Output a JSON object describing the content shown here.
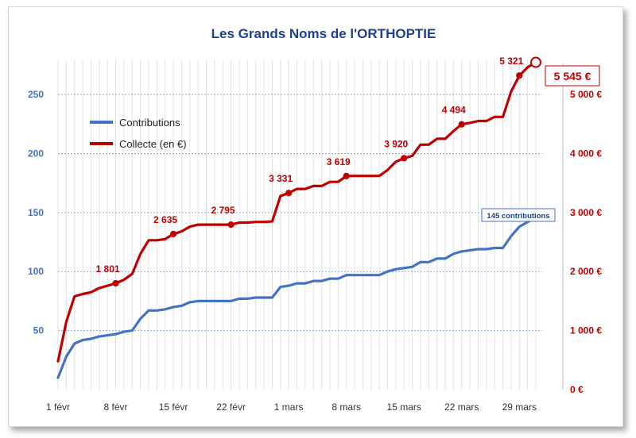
{
  "chart_data": {
    "type": "line",
    "title": "Les Grands Noms de l'ORTHOPTIE",
    "x_tick_labels": [
      "1 févr",
      "8 févr",
      "15 févr",
      "22 févr",
      "1 mars",
      "8 mars",
      "15 mars",
      "22 mars",
      "29 mars"
    ],
    "x_range_days": [
      1,
      59
    ],
    "y_left": {
      "range": [
        0,
        285
      ],
      "ticks": [
        50,
        100,
        150,
        200,
        250
      ]
    },
    "y_right": {
      "range": [
        0,
        5700
      ],
      "ticks": [
        0,
        1000,
        2000,
        3000,
        4000,
        5000
      ],
      "tick_labels": [
        "0 €",
        "1 000 €",
        "2 000 €",
        "3 000 €",
        "4 000 €",
        "5 000 €"
      ]
    },
    "grid": {
      "horizontal": "dotted",
      "vertical": "daily"
    },
    "legend_position": "upper-left",
    "series": [
      {
        "name": "Contributions",
        "axis": "left",
        "color": "#4472c4",
        "x": [
          1,
          2,
          3,
          4,
          5,
          6,
          7,
          8,
          9,
          10,
          11,
          12,
          13,
          14,
          15,
          16,
          17,
          18,
          19,
          20,
          21,
          22,
          23,
          24,
          25,
          26,
          27,
          28,
          29,
          30,
          31,
          32,
          33,
          34,
          35,
          36,
          37,
          38,
          39,
          40,
          41,
          42,
          43,
          44,
          45,
          46,
          47,
          48,
          49,
          50,
          51,
          52,
          53,
          54,
          55,
          56,
          57,
          58,
          59
        ],
        "values": [
          10,
          28,
          39,
          42,
          43,
          45,
          46,
          47,
          49,
          50,
          60,
          67,
          67,
          68,
          70,
          71,
          74,
          75,
          75,
          75,
          75,
          75,
          77,
          77,
          78,
          78,
          78,
          87,
          88,
          90,
          90,
          92,
          92,
          94,
          94,
          97,
          97,
          97,
          97,
          97,
          100,
          102,
          103,
          104,
          108,
          108,
          111,
          111,
          115,
          117,
          118,
          119,
          119,
          120,
          120,
          130,
          138,
          142,
          145
        ],
        "annotation": "145 contributions"
      },
      {
        "name": "Collecte (en €)",
        "axis": "right",
        "color": "#c00000",
        "x": [
          1,
          2,
          3,
          4,
          5,
          6,
          7,
          8,
          9,
          10,
          11,
          12,
          13,
          14,
          15,
          16,
          17,
          18,
          19,
          20,
          21,
          22,
          23,
          24,
          25,
          26,
          27,
          28,
          29,
          30,
          31,
          32,
          33,
          34,
          35,
          36,
          37,
          38,
          39,
          40,
          41,
          42,
          43,
          44,
          45,
          46,
          47,
          48,
          49,
          50,
          51,
          52,
          53,
          54,
          55,
          56,
          57,
          58,
          59
        ],
        "values": [
          480,
          1150,
          1580,
          1620,
          1650,
          1720,
          1760,
          1801,
          1860,
          1960,
          2300,
          2530,
          2530,
          2550,
          2635,
          2680,
          2760,
          2795,
          2795,
          2795,
          2795,
          2795,
          2830,
          2830,
          2840,
          2840,
          2850,
          3280,
          3331,
          3400,
          3400,
          3450,
          3450,
          3519,
          3519,
          3619,
          3620,
          3620,
          3620,
          3620,
          3720,
          3860,
          3920,
          3960,
          4150,
          4150,
          4250,
          4250,
          4380,
          4494,
          4520,
          4550,
          4550,
          4620,
          4620,
          5050,
          5321,
          5460,
          5545
        ],
        "markers": [
          {
            "x": 8,
            "value": 1801,
            "label": "1 801"
          },
          {
            "x": 15,
            "value": 2635,
            "label": "2 635"
          },
          {
            "x": 22,
            "value": 2795,
            "label": "2 795"
          },
          {
            "x": 29,
            "value": 3331,
            "label": "3 331"
          },
          {
            "x": 36,
            "value": 3619,
            "label": "3 619"
          },
          {
            "x": 43,
            "value": 3920,
            "label": "3 920"
          },
          {
            "x": 50,
            "value": 4494,
            "label": "4 494"
          },
          {
            "x": 57,
            "value": 5321,
            "label": "5 321"
          }
        ],
        "final_label": "5 545 €"
      }
    ]
  }
}
